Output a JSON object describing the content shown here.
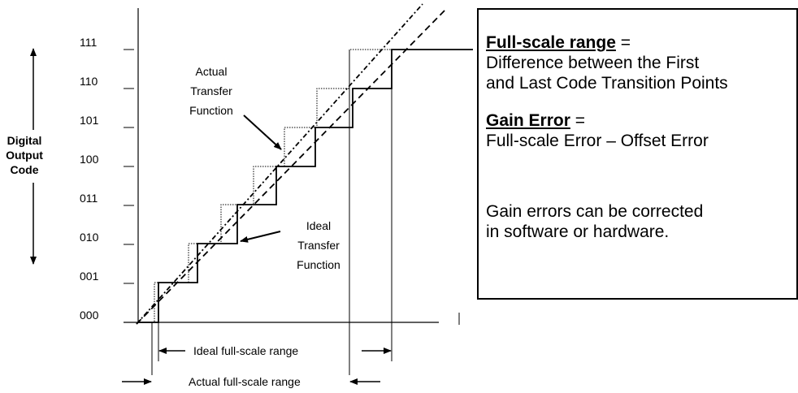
{
  "codes": [
    "000",
    "001",
    "010",
    "011",
    "100",
    "101",
    "110",
    "111"
  ],
  "axis_label": [
    "Digital",
    "Output",
    "Code"
  ],
  "actual_annotation": [
    "Actual",
    "Transfer",
    "Function"
  ],
  "ideal_annotation": [
    "Ideal",
    "Transfer",
    "Function"
  ],
  "ideal_range": "Ideal full-scale range",
  "actual_range": "Actual full-scale range",
  "box": {
    "term1": "Full-scale range",
    "eq1": " =",
    "def1": [
      "Difference between the First",
      "and Last Code Transition Points"
    ],
    "term2": "Gain Error",
    "eq2": " =",
    "def2": "Full-scale Error – Offset Error",
    "note": [
      "Gain errors can be corrected",
      "in software or hardware."
    ]
  }
}
